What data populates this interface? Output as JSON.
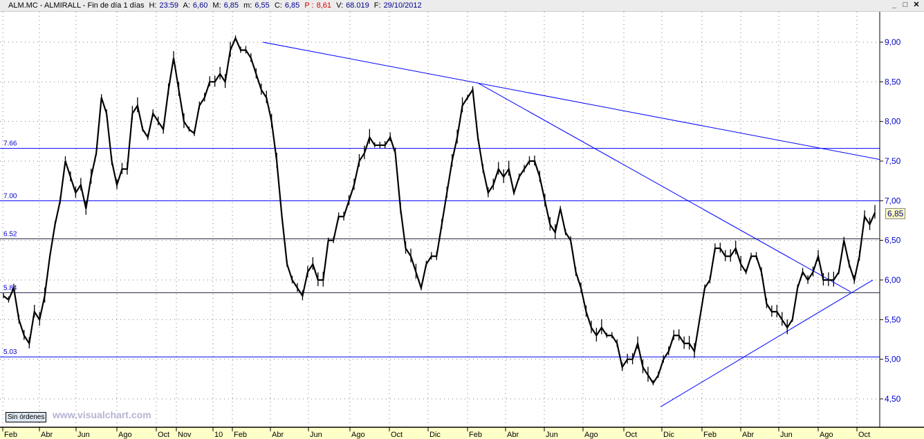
{
  "header": {
    "symbol": "ALM.MC - ALMIRALL - Fin de día 1 días",
    "h_label": "H:",
    "h": "23:59",
    "a_label": "A:",
    "a": "6,60",
    "m_label": "M:",
    "m": "6,85",
    "min_label": "m:",
    "min": "6,55",
    "c_label": "C:",
    "c": "6,85",
    "p_label": "P :",
    "p": "8,61",
    "v_label": "V:",
    "v": "68.019",
    "f_label": "F:",
    "f": "29/10/2012"
  },
  "window_buttons": [
    "minimize-icon",
    "maximize-icon",
    "close-icon"
  ],
  "orders_label": "Sin órdenes",
  "watermark": "www.visualchart.com",
  "last_price": "6,85",
  "colors": {
    "price": "#000000",
    "lines": "#0000ff",
    "axis_text": "#0000cc",
    "time_axis_bg": "#ffffc8"
  },
  "chart_data": {
    "type": "line",
    "ylim": [
      4.3,
      9.25
    ],
    "y_ticks": [
      "9,00",
      "8,50",
      "8,00",
      "7,50",
      "7,00",
      "6,50",
      "6,00",
      "5,50",
      "5,00",
      "4,50"
    ],
    "x_ticks": [
      "Feb",
      "Abr",
      "Jun",
      "Ago",
      "Oct",
      "Nov",
      "10",
      "Feb",
      "Abr",
      "Jun",
      "Ago",
      "Oct",
      "Dic",
      "Feb",
      "Abr",
      "Jun",
      "Ago",
      "Oct",
      "Dic",
      "Feb",
      "Abr",
      "Jun",
      "Ago",
      "Oct"
    ],
    "grid": true,
    "series": [
      {
        "values": [
          5.8,
          5.75,
          5.9,
          5.5,
          5.3,
          5.2,
          5.6,
          5.5,
          5.8,
          6.3,
          6.7,
          7.0,
          7.5,
          7.3,
          7.1,
          7.2,
          6.9,
          7.3,
          7.6,
          8.3,
          8.1,
          7.5,
          7.2,
          7.4,
          7.4,
          8.1,
          8.2,
          7.9,
          7.8,
          8.1,
          8.0,
          7.9,
          8.4,
          8.8,
          8.4,
          8.0,
          7.9,
          7.85,
          8.2,
          8.3,
          8.5,
          8.5,
          8.6,
          8.5,
          8.9,
          9.05,
          8.9,
          8.9,
          8.8,
          8.6,
          8.4,
          8.3,
          8.0,
          7.5,
          6.8,
          6.2,
          6.0,
          5.9,
          5.8,
          6.1,
          6.2,
          6.0,
          6.0,
          6.5,
          6.5,
          6.8,
          6.8,
          7.0,
          7.2,
          7.5,
          7.6,
          7.8,
          7.7,
          7.7,
          7.7,
          7.8,
          7.6,
          6.9,
          6.4,
          6.3,
          6.1,
          5.9,
          6.2,
          6.3,
          6.3,
          6.7,
          7.1,
          7.5,
          7.8,
          8.2,
          8.3,
          8.4,
          7.8,
          7.4,
          7.1,
          7.2,
          7.4,
          7.3,
          7.4,
          7.1,
          7.3,
          7.4,
          7.5,
          7.5,
          7.3,
          7.0,
          6.7,
          6.6,
          6.9,
          6.6,
          6.5,
          6.1,
          5.9,
          5.6,
          5.4,
          5.3,
          5.4,
          5.3,
          5.3,
          5.2,
          4.9,
          5.0,
          5.0,
          5.2,
          4.9,
          4.8,
          4.7,
          4.8,
          5.0,
          5.1,
          5.3,
          5.3,
          5.2,
          5.2,
          5.1,
          5.5,
          5.9,
          6.0,
          6.4,
          6.4,
          6.3,
          6.3,
          6.4,
          6.2,
          6.1,
          6.3,
          6.3,
          6.1,
          5.7,
          5.6,
          5.6,
          5.5,
          5.4,
          5.5,
          5.9,
          6.1,
          6.0,
          6.1,
          6.3,
          6.0,
          6.0,
          6.0,
          6.1,
          6.5,
          6.2,
          6.0,
          6.3,
          6.8,
          6.7,
          6.85
        ]
      }
    ],
    "horizontal_lines": [
      {
        "label": "7.66",
        "value": 7.66
      },
      {
        "label": "7.00",
        "value": 7.0
      },
      {
        "label": "6.52",
        "value": 6.52
      },
      {
        "label": "5.84",
        "value": 5.84
      },
      {
        "label": "5.03",
        "value": 5.03
      }
    ],
    "trendlines": [
      {
        "from": 9.0,
        "to": 7.52
      },
      {
        "from": 8.48,
        "to": 5.85
      },
      {
        "from": 4.4,
        "to": 6.0
      }
    ]
  }
}
